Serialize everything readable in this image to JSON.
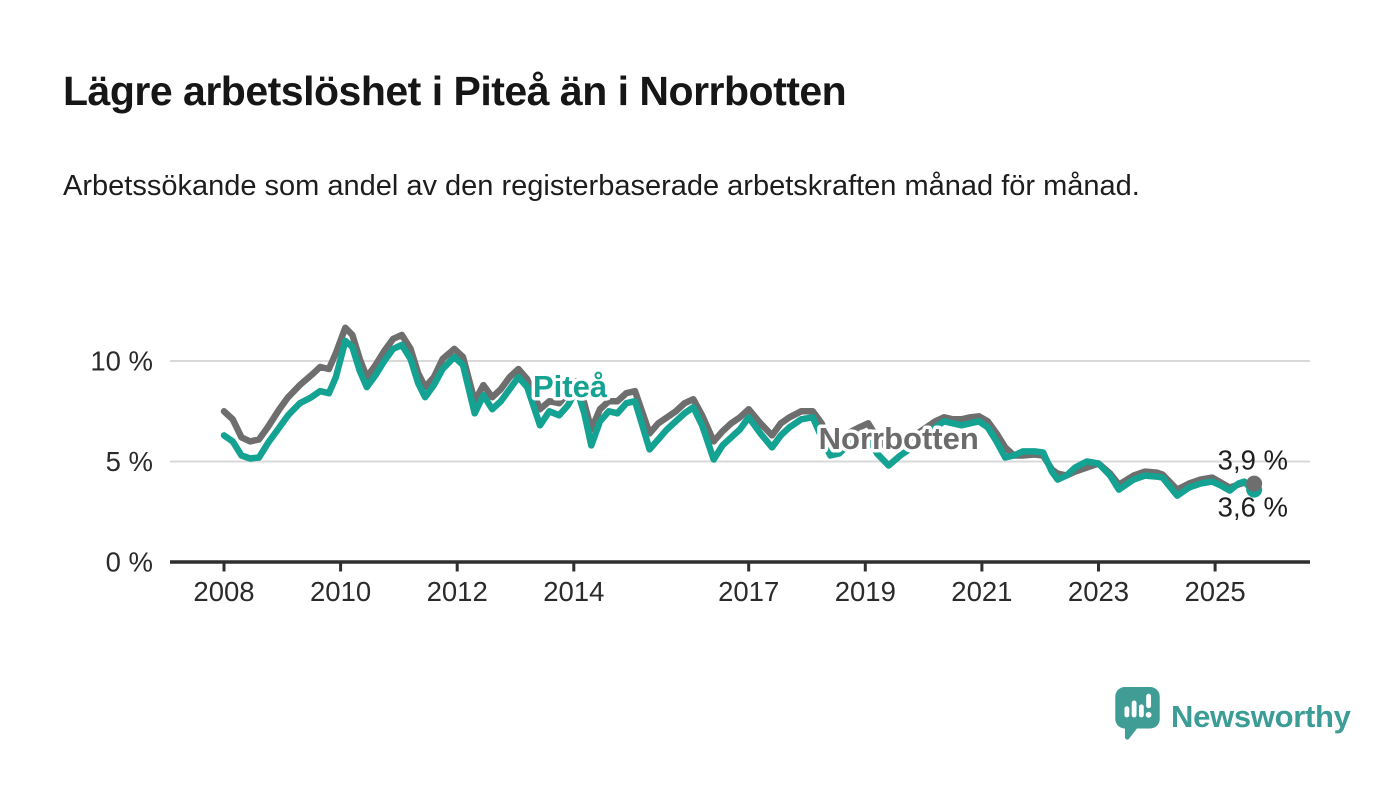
{
  "header": {
    "title": "Lägre arbetslöshet i Piteå än i Norrbotten",
    "subtitle": "Arbetssökande som andel av den registerbaserade arbetskraften månad för månad."
  },
  "colors": {
    "pitea_teal": "#14A292",
    "norrbotten_gray": "#6E6E6E",
    "axis": "#2F2F2F",
    "grid": "#D9D9D9",
    "tick_text": "#2B2B2B",
    "end_label_text": "#1F1F1F",
    "logo_teal": "#3C9C96"
  },
  "logo": {
    "brand": "Newsworthy",
    "icon": "speech-bubble-bar-chart-icon"
  },
  "chart_data": {
    "type": "line",
    "title": "Lägre arbetslöshet i Piteå än i Norrbotten",
    "subtitle": "Arbetssökande som andel av den registerbaserade arbetskraften månad för månad.",
    "unit": "%",
    "grid": true,
    "legend_position": "inline-labels-on-lines",
    "x_axis": {
      "min": 2007.1,
      "max": 2026.6,
      "tick_years": [
        2008,
        2010,
        2012,
        2014,
        2017,
        2019,
        2021,
        2023,
        2025
      ]
    },
    "y_axis": {
      "min": 0,
      "max": 12.5,
      "ticks": [
        {
          "value": 0,
          "label": "0 %"
        },
        {
          "value": 5,
          "label": "5 %"
        },
        {
          "value": 10,
          "label": "10 %"
        }
      ],
      "grid_values": [
        5,
        10
      ]
    },
    "annotations": [
      {
        "text": "Piteå",
        "x": 2013.3,
        "y": 8.2,
        "color": "#14A292"
      },
      {
        "text": "Norrbotten",
        "x": 2018.2,
        "y": 5.62,
        "color": "#6B6B6B"
      }
    ],
    "series": [
      {
        "name": "Norrbotten",
        "color": "#6E6E6E",
        "end_label": "3,9 %",
        "end_label_side": "above",
        "latest_value": 3.9,
        "points": [
          [
            2008.0,
            7.5
          ],
          [
            2008.15,
            7.1
          ],
          [
            2008.3,
            6.2
          ],
          [
            2008.45,
            6.0
          ],
          [
            2008.6,
            6.1
          ],
          [
            2008.75,
            6.7
          ],
          [
            2008.95,
            7.6
          ],
          [
            2009.1,
            8.2
          ],
          [
            2009.3,
            8.8
          ],
          [
            2009.5,
            9.3
          ],
          [
            2009.65,
            9.7
          ],
          [
            2009.8,
            9.6
          ],
          [
            2009.92,
            10.4
          ],
          [
            2010.08,
            11.65
          ],
          [
            2010.2,
            11.3
          ],
          [
            2010.33,
            10.1
          ],
          [
            2010.45,
            9.2
          ],
          [
            2010.6,
            9.8
          ],
          [
            2010.75,
            10.5
          ],
          [
            2010.9,
            11.1
          ],
          [
            2011.05,
            11.3
          ],
          [
            2011.2,
            10.6
          ],
          [
            2011.33,
            9.4
          ],
          [
            2011.45,
            8.7
          ],
          [
            2011.6,
            9.2
          ],
          [
            2011.75,
            10.1
          ],
          [
            2011.95,
            10.6
          ],
          [
            2012.1,
            10.2
          ],
          [
            2012.3,
            8.0
          ],
          [
            2012.45,
            8.8
          ],
          [
            2012.6,
            8.2
          ],
          [
            2012.75,
            8.6
          ],
          [
            2012.9,
            9.2
          ],
          [
            2013.05,
            9.6
          ],
          [
            2013.2,
            9.1
          ],
          [
            2013.42,
            7.6
          ],
          [
            2013.58,
            8.0
          ],
          [
            2013.75,
            7.9
          ],
          [
            2013.9,
            8.4
          ],
          [
            2014.05,
            9.0
          ],
          [
            2014.18,
            7.9
          ],
          [
            2014.3,
            6.6
          ],
          [
            2014.45,
            7.6
          ],
          [
            2014.6,
            8.0
          ],
          [
            2014.75,
            8.0
          ],
          [
            2014.9,
            8.4
          ],
          [
            2015.05,
            8.5
          ],
          [
            2015.3,
            6.4
          ],
          [
            2015.45,
            6.9
          ],
          [
            2015.6,
            7.2
          ],
          [
            2015.75,
            7.5
          ],
          [
            2015.9,
            7.9
          ],
          [
            2016.05,
            8.1
          ],
          [
            2016.2,
            7.3
          ],
          [
            2016.4,
            6.0
          ],
          [
            2016.55,
            6.5
          ],
          [
            2016.7,
            6.9
          ],
          [
            2016.85,
            7.2
          ],
          [
            2017.0,
            7.6
          ],
          [
            2017.2,
            6.9
          ],
          [
            2017.4,
            6.3
          ],
          [
            2017.55,
            6.9
          ],
          [
            2017.7,
            7.2
          ],
          [
            2017.9,
            7.5
          ],
          [
            2018.1,
            7.5
          ],
          [
            2018.25,
            6.9
          ],
          [
            2018.4,
            6.0
          ],
          [
            2018.55,
            6.1
          ],
          [
            2018.7,
            6.4
          ],
          [
            2018.9,
            6.7
          ],
          [
            2019.05,
            6.9
          ],
          [
            2019.2,
            6.2
          ],
          [
            2019.4,
            5.6
          ],
          [
            2019.6,
            5.9
          ],
          [
            2019.8,
            6.2
          ],
          [
            2020.0,
            6.6
          ],
          [
            2020.2,
            7.0
          ],
          [
            2020.35,
            7.2
          ],
          [
            2020.5,
            7.1
          ],
          [
            2020.65,
            7.1
          ],
          [
            2020.8,
            7.2
          ],
          [
            2020.95,
            7.25
          ],
          [
            2021.1,
            7.0
          ],
          [
            2021.25,
            6.4
          ],
          [
            2021.4,
            5.7
          ],
          [
            2021.55,
            5.3
          ],
          [
            2021.7,
            5.3
          ],
          [
            2021.9,
            5.35
          ],
          [
            2022.05,
            5.3
          ],
          [
            2022.2,
            4.6
          ],
          [
            2022.3,
            4.4
          ],
          [
            2022.45,
            4.3
          ],
          [
            2022.6,
            4.5
          ],
          [
            2022.8,
            4.7
          ],
          [
            2023.0,
            4.9
          ],
          [
            2023.2,
            4.4
          ],
          [
            2023.35,
            3.85
          ],
          [
            2023.6,
            4.3
          ],
          [
            2023.8,
            4.5
          ],
          [
            2024.0,
            4.45
          ],
          [
            2024.1,
            4.35
          ],
          [
            2024.35,
            3.6
          ],
          [
            2024.55,
            3.9
          ],
          [
            2024.75,
            4.1
          ],
          [
            2024.95,
            4.2
          ],
          [
            2025.1,
            3.95
          ],
          [
            2025.25,
            3.7
          ],
          [
            2025.4,
            3.85
          ],
          [
            2025.5,
            3.95
          ],
          [
            2025.6,
            3.9
          ],
          [
            2025.67,
            3.9
          ]
        ]
      },
      {
        "name": "Piteå",
        "color": "#14A292",
        "end_label": "3,6 %",
        "end_label_side": "below",
        "latest_value": 3.6,
        "points": [
          [
            2008.0,
            6.3
          ],
          [
            2008.15,
            6.0
          ],
          [
            2008.3,
            5.3
          ],
          [
            2008.45,
            5.15
          ],
          [
            2008.6,
            5.2
          ],
          [
            2008.75,
            5.9
          ],
          [
            2008.95,
            6.7
          ],
          [
            2009.1,
            7.3
          ],
          [
            2009.3,
            7.9
          ],
          [
            2009.5,
            8.2
          ],
          [
            2009.65,
            8.5
          ],
          [
            2009.8,
            8.4
          ],
          [
            2009.92,
            9.2
          ],
          [
            2010.08,
            11.0
          ],
          [
            2010.2,
            10.7
          ],
          [
            2010.33,
            9.5
          ],
          [
            2010.45,
            8.7
          ],
          [
            2010.6,
            9.3
          ],
          [
            2010.75,
            10.0
          ],
          [
            2010.9,
            10.6
          ],
          [
            2011.05,
            10.8
          ],
          [
            2011.2,
            10.1
          ],
          [
            2011.33,
            8.9
          ],
          [
            2011.45,
            8.2
          ],
          [
            2011.6,
            8.8
          ],
          [
            2011.75,
            9.6
          ],
          [
            2011.95,
            10.2
          ],
          [
            2012.1,
            9.8
          ],
          [
            2012.3,
            7.4
          ],
          [
            2012.45,
            8.3
          ],
          [
            2012.6,
            7.6
          ],
          [
            2012.75,
            8.0
          ],
          [
            2012.9,
            8.6
          ],
          [
            2013.05,
            9.2
          ],
          [
            2013.2,
            8.7
          ],
          [
            2013.42,
            6.8
          ],
          [
            2013.58,
            7.5
          ],
          [
            2013.75,
            7.3
          ],
          [
            2013.9,
            7.8
          ],
          [
            2014.05,
            8.6
          ],
          [
            2014.18,
            7.4
          ],
          [
            2014.3,
            5.8
          ],
          [
            2014.45,
            7.0
          ],
          [
            2014.6,
            7.5
          ],
          [
            2014.75,
            7.4
          ],
          [
            2014.9,
            7.9
          ],
          [
            2015.05,
            8.0
          ],
          [
            2015.3,
            5.6
          ],
          [
            2015.45,
            6.1
          ],
          [
            2015.6,
            6.6
          ],
          [
            2015.75,
            7.0
          ],
          [
            2015.9,
            7.4
          ],
          [
            2016.05,
            7.7
          ],
          [
            2016.2,
            6.8
          ],
          [
            2016.4,
            5.1
          ],
          [
            2016.55,
            5.8
          ],
          [
            2016.7,
            6.2
          ],
          [
            2016.85,
            6.6
          ],
          [
            2017.0,
            7.2
          ],
          [
            2017.2,
            6.4
          ],
          [
            2017.4,
            5.7
          ],
          [
            2017.55,
            6.3
          ],
          [
            2017.7,
            6.7
          ],
          [
            2017.9,
            7.1
          ],
          [
            2018.1,
            7.2
          ],
          [
            2018.25,
            6.2
          ],
          [
            2018.4,
            5.3
          ],
          [
            2018.55,
            5.4
          ],
          [
            2018.7,
            5.8
          ],
          [
            2018.9,
            6.1
          ],
          [
            2019.05,
            6.2
          ],
          [
            2019.2,
            5.4
          ],
          [
            2019.4,
            4.8
          ],
          [
            2019.6,
            5.3
          ],
          [
            2019.8,
            5.7
          ],
          [
            2020.0,
            6.1
          ],
          [
            2020.2,
            6.7
          ],
          [
            2020.35,
            7.0
          ],
          [
            2020.5,
            6.9
          ],
          [
            2020.65,
            6.8
          ],
          [
            2020.8,
            6.9
          ],
          [
            2020.95,
            7.0
          ],
          [
            2021.1,
            6.7
          ],
          [
            2021.25,
            6.0
          ],
          [
            2021.4,
            5.2
          ],
          [
            2021.55,
            5.3
          ],
          [
            2021.7,
            5.5
          ],
          [
            2021.9,
            5.5
          ],
          [
            2022.05,
            5.45
          ],
          [
            2022.2,
            4.5
          ],
          [
            2022.3,
            4.1
          ],
          [
            2022.45,
            4.3
          ],
          [
            2022.6,
            4.7
          ],
          [
            2022.8,
            5.0
          ],
          [
            2023.0,
            4.9
          ],
          [
            2023.2,
            4.3
          ],
          [
            2023.35,
            3.6
          ],
          [
            2023.6,
            4.1
          ],
          [
            2023.8,
            4.3
          ],
          [
            2024.0,
            4.25
          ],
          [
            2024.1,
            4.2
          ],
          [
            2024.35,
            3.3
          ],
          [
            2024.55,
            3.7
          ],
          [
            2024.75,
            3.9
          ],
          [
            2024.95,
            4.0
          ],
          [
            2025.1,
            3.8
          ],
          [
            2025.25,
            3.55
          ],
          [
            2025.4,
            3.9
          ],
          [
            2025.5,
            4.0
          ],
          [
            2025.6,
            3.7
          ],
          [
            2025.67,
            3.6
          ]
        ]
      }
    ]
  }
}
